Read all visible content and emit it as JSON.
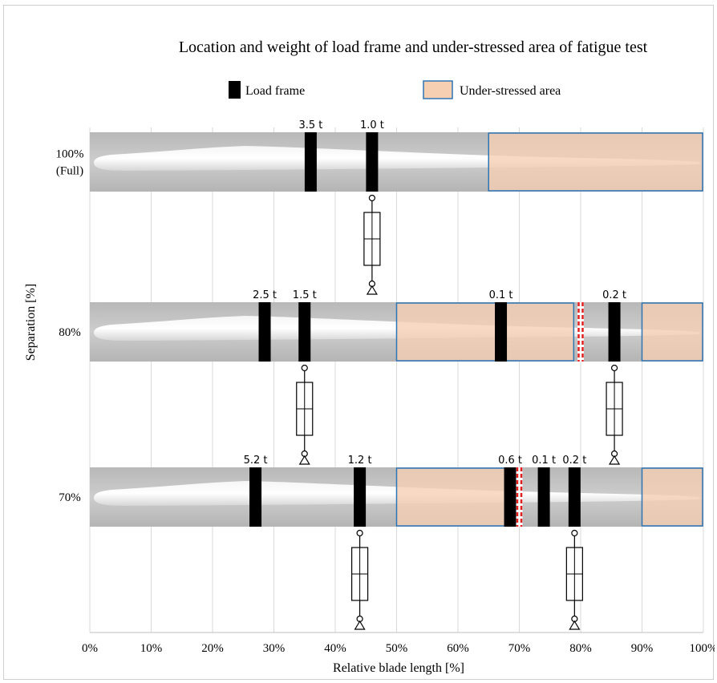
{
  "chart_data": {
    "type": "diagram-bar",
    "title": "Location and weight of load frame and under-stressed area of fatigue test",
    "xlabel": "Relative blade length [%]",
    "ylabel": "Separation [%]",
    "xlim": [
      0,
      100
    ],
    "xticks": [
      "0%",
      "10%",
      "20%",
      "30%",
      "40%",
      "50%",
      "60%",
      "70%",
      "80%",
      "90%",
      "100%"
    ],
    "grid": true,
    "legend": {
      "placement": "top",
      "items": [
        {
          "name": "Load frame",
          "color": "#000000"
        },
        {
          "name": "Under-stressed area",
          "color": "#f6cfb3",
          "border": "#2e75b6"
        }
      ]
    },
    "rows": [
      {
        "label_lines": [
          "100%",
          "(Full)"
        ],
        "blade_end": 100,
        "frames": [
          {
            "pos": 36,
            "weight": "3.5 t"
          },
          {
            "pos": 46,
            "weight": "1.0 t"
          }
        ],
        "under_stressed": [
          [
            65,
            100
          ]
        ],
        "cuts": [],
        "actuators": [
          46
        ]
      },
      {
        "label_lines": [
          "80%"
        ],
        "blade_end": 100,
        "frames": [
          {
            "pos": 28.5,
            "weight": "2.5 t"
          },
          {
            "pos": 35,
            "weight": "1.5 t"
          },
          {
            "pos": 67,
            "weight": "0.1 t"
          },
          {
            "pos": 85.5,
            "weight": "0.2 t"
          }
        ],
        "under_stressed": [
          [
            50,
            79
          ],
          [
            90,
            100
          ]
        ],
        "cuts": [
          80
        ],
        "actuators": [
          35,
          85.5
        ]
      },
      {
        "label_lines": [
          "70%"
        ],
        "blade_end": 100,
        "frames": [
          {
            "pos": 27,
            "weight": "5.2 t"
          },
          {
            "pos": 44,
            "weight": "1.2 t"
          },
          {
            "pos": 68.5,
            "weight": "0.6 t"
          },
          {
            "pos": 74,
            "weight": "0.1 t"
          },
          {
            "pos": 79,
            "weight": "0.2 t"
          }
        ],
        "under_stressed": [
          [
            50,
            68.5
          ],
          [
            90,
            100
          ]
        ],
        "cuts": [
          70
        ],
        "actuators": [
          44,
          79
        ]
      }
    ]
  },
  "colors": {
    "band": "#c4c4c4",
    "under_fill": "#f6cfb3",
    "under_border": "#2e75b6",
    "frame": "#000000",
    "cut": "#e02020",
    "grid": "#d9d9d9"
  }
}
